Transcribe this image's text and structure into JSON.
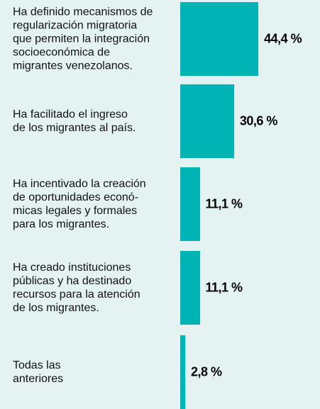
{
  "chart_data": {
    "type": "bar",
    "orientation": "horizontal",
    "categories": [
      "Ha definido mecanismos de\nregularización migratoria\nque permiten la integración\nsocioeconómica de\nmigrantes venezolanos.",
      "Ha facilitado el ingreso\nde los migrantes al país.",
      "Ha incentivado la creación\nde oportunidades econó-\nmicas legales y formales\npara los migrantes.",
      "Ha creado instituciones\npúblicas y ha destinado\nrecursos para la atención\nde los migrantes.",
      "Todas las\nanteriores"
    ],
    "values": [
      44.4,
      30.6,
      11.1,
      11.1,
      2.8
    ],
    "value_labels": [
      "44,4 %",
      "30,6 %",
      "11,1 %",
      "11,1 %",
      "2,8 %"
    ],
    "color": "#00b4b6"
  }
}
